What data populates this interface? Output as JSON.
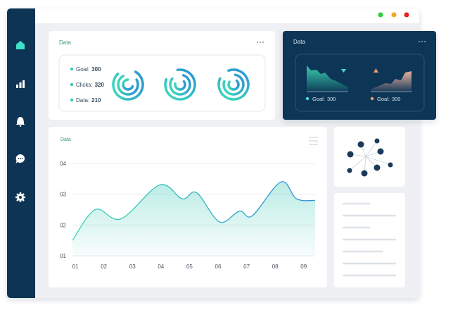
{
  "stats_card": {
    "title": "Data",
    "items": [
      {
        "label": "Goal:",
        "value": 300
      },
      {
        "label": "Clicks:",
        "value": 320
      },
      {
        "label": "Data:",
        "value": 210
      }
    ]
  },
  "dark_card": {
    "title": "Data",
    "legend": [
      {
        "label": "Goal:",
        "value": 300
      },
      {
        "label": "Goal:",
        "value": 300
      }
    ]
  },
  "chart_data": {
    "type": "line",
    "title": "Data",
    "x": [
      0.9,
      1.7,
      2.6,
      3.95,
      4.75,
      5.25,
      6.05,
      6.75,
      7.2,
      8.2,
      8.75,
      9.4
    ],
    "series": [
      {
        "color": "#3cc9b5",
        "values": [
          1.5,
          2.5,
          2.2,
          3.3,
          2.85,
          3.05,
          2.1,
          2.45,
          2.3,
          3.4,
          2.85,
          2.8
        ]
      }
    ],
    "xlim": [
      0.9,
      9.4
    ],
    "xticks": [
      {
        "value": 1,
        "label": "01"
      },
      {
        "value": 2,
        "label": "02"
      },
      {
        "value": 3,
        "label": "03"
      },
      {
        "value": 4,
        "label": "04"
      },
      {
        "value": 5,
        "label": "05"
      },
      {
        "value": 6,
        "label": "06"
      },
      {
        "value": 7,
        "label": "07"
      },
      {
        "value": 8,
        "label": "08"
      },
      {
        "value": 9,
        "label": "09"
      }
    ],
    "ylim": [
      1,
      4
    ],
    "yticks": [
      {
        "value": 1,
        "label": "01"
      },
      {
        "value": 2,
        "label": "02"
      },
      {
        "value": 3,
        "label": "03"
      },
      {
        "value": 4,
        "label": "04"
      }
    ],
    "grid": true
  }
}
